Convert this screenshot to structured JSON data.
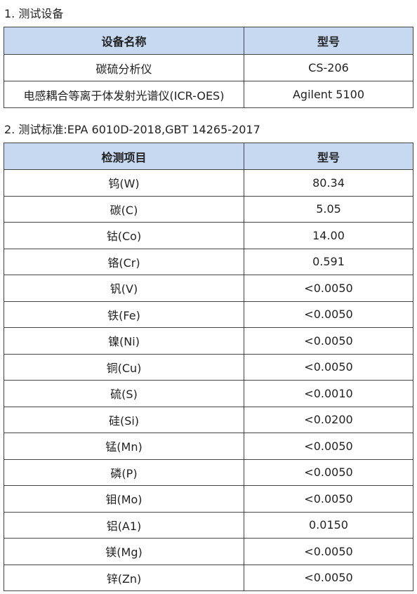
{
  "section1": {
    "heading": "1. 测试设备",
    "table": {
      "header": [
        "设备名称",
        "型号"
      ],
      "rows": [
        [
          "碳硫分析仪",
          "CS-206"
        ],
        [
          "电感耦合等离于体发射光谱仪(ICR-OES)",
          "Agilent 5100"
        ]
      ]
    }
  },
  "section2": {
    "heading": "2. 测试标准:EPA 6010D-2018,GBT 14265-2017",
    "table": {
      "header": [
        "检测项目",
        "型号"
      ],
      "rows": [
        [
          "钨(W)",
          "80.34"
        ],
        [
          "碳(C)",
          "5.05"
        ],
        [
          "钴(Co)",
          "14.00"
        ],
        [
          "铬(Cr)",
          "0.591"
        ],
        [
          "钒(V)",
          "<0.0050"
        ],
        [
          "铁(Fe)",
          "<0.0050"
        ],
        [
          "镍(Ni)",
          "<0.0050"
        ],
        [
          "铜(Cu)",
          "<0.0050"
        ],
        [
          "硫(S)",
          "<0.0010"
        ],
        [
          "硅(Si)",
          "<0.0200"
        ],
        [
          "锰(Mn)",
          "<0.0050"
        ],
        [
          "磷(P)",
          "<0.0050"
        ],
        [
          "钼(Mo)",
          "<0.0050"
        ],
        [
          "铝(A1)",
          "0.0150"
        ],
        [
          "镁(Mg)",
          "<0.0050"
        ],
        [
          "锌(Zn)",
          "<0.0050"
        ]
      ]
    }
  }
}
